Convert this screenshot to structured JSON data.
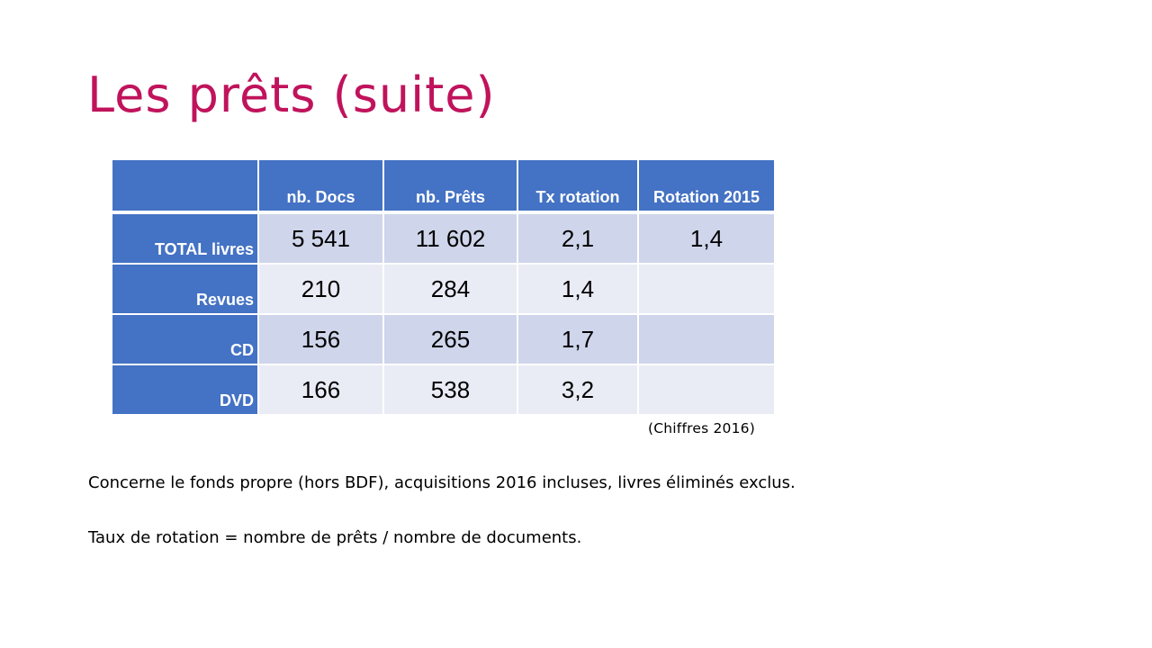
{
  "slide": {
    "title": "Les prêts (suite)"
  },
  "table": {
    "headers": [
      "",
      "nb. Docs",
      "nb. Prêts",
      "Tx rotation",
      "Rotation 2015"
    ],
    "rows": [
      {
        "label": "TOTAL livres",
        "docs": "5 541",
        "prets": "11 602",
        "tx": "2,1",
        "rotation_2015": "1,4"
      },
      {
        "label": "Revues",
        "docs": "210",
        "prets": "284",
        "tx": "1,4",
        "rotation_2015": ""
      },
      {
        "label": "CD",
        "docs": "156",
        "prets": "265",
        "tx": "1,7",
        "rotation_2015": ""
      },
      {
        "label": "DVD",
        "docs": "166",
        "prets": "538",
        "tx": "3,2",
        "rotation_2015": ""
      }
    ],
    "source_note": "(Chiffres  2016)"
  },
  "notes": [
    "Concerne le fonds propre (hors BDF), acquisitions 2016 incluses, livres éliminés exclus.",
    "Taux de rotation = nombre de prêts / nombre de documents."
  ],
  "colors": {
    "title": "#c0135c",
    "header": "#4472c4",
    "band_dark": "#cfd5ea",
    "band_light": "#e9ebf5"
  }
}
